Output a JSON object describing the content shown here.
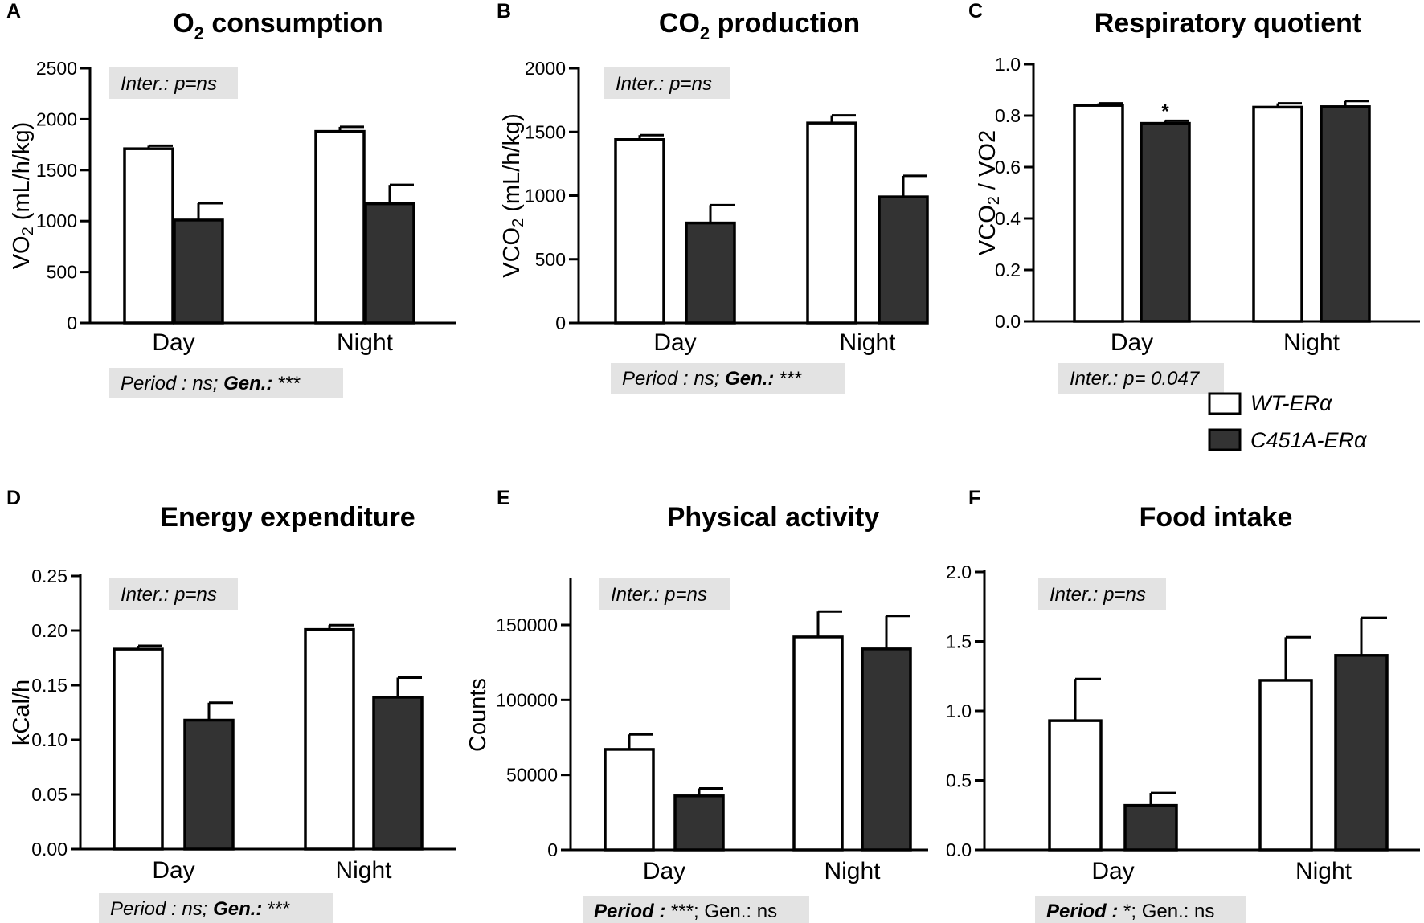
{
  "legend": {
    "wt_label": "WT-ERα",
    "c451a_label": "C451A-ERα",
    "wt_fill": "#ffffff",
    "c451a_fill": "#333333"
  },
  "colors": {
    "annotation_box": "#e3e3e3",
    "stroke": "#000000"
  },
  "chart_data": [
    {
      "id": "A",
      "panel_letter": "A",
      "type": "bar",
      "title": "O2 consumption",
      "title_main": "O",
      "title_sub": "2",
      "title_rest": " consumption",
      "ylabel": "VO2 (mL/h/kg)",
      "ylabel_main": "VO",
      "ylabel_sub": "2",
      "ylabel_rest": " (mL/h/kg)",
      "ylim": [
        0,
        2500
      ],
      "yticks": [
        0,
        500,
        1000,
        1500,
        2000,
        2500
      ],
      "ytick_labels": [
        "0",
        "500",
        "1000",
        "1500",
        "2000",
        "2500"
      ],
      "categories": [
        "Day",
        "Night"
      ],
      "series": [
        {
          "name": "WT-ERα",
          "values": [
            1710,
            1880
          ],
          "errors": [
            30,
            45
          ]
        },
        {
          "name": "C451A-ERα",
          "values": [
            1010,
            1170
          ],
          "errors": [
            165,
            185
          ]
        }
      ],
      "top_annotation": "Inter.: p=ns",
      "bottom_annotation_normal": "Period : ns; ",
      "bottom_annotation_bold": "Gen.:",
      "bottom_annotation_tail": " ***",
      "significance_marks": []
    },
    {
      "id": "B",
      "panel_letter": "B",
      "type": "bar",
      "title": "CO2 production",
      "title_main": "CO",
      "title_sub": "2",
      "title_rest": " production",
      "ylabel": "VCO2 (mL/h/kg)",
      "ylabel_main": "VCO",
      "ylabel_sub": "2",
      "ylabel_rest": " (mL/h/kg)",
      "ylim": [
        0,
        2000
      ],
      "yticks": [
        0,
        500,
        1000,
        1500,
        2000
      ],
      "ytick_labels": [
        "0",
        "500",
        "1000",
        "1500",
        "2000"
      ],
      "categories": [
        "Day",
        "Night"
      ],
      "series": [
        {
          "name": "WT-ERα",
          "values": [
            1440,
            1570
          ],
          "errors": [
            35,
            60
          ]
        },
        {
          "name": "C451A-ERα",
          "values": [
            785,
            990
          ],
          "errors": [
            140,
            165
          ]
        }
      ],
      "top_annotation": "Inter.: p=ns",
      "bottom_annotation_normal": "Period : ns; ",
      "bottom_annotation_bold": "Gen.:",
      "bottom_annotation_tail": " ***",
      "significance_marks": []
    },
    {
      "id": "C",
      "panel_letter": "C",
      "type": "bar",
      "title": "Respiratory quotient",
      "title_main": "Respiratory quotient",
      "title_sub": "",
      "title_rest": "",
      "ylabel": "VCO2 / VO2",
      "ylabel_main": "VCO",
      "ylabel_sub": "2",
      "ylabel_rest": " / VO2",
      "ylim": [
        0,
        1.0
      ],
      "yticks": [
        0,
        0.2,
        0.4,
        0.6,
        0.8,
        1.0
      ],
      "ytick_labels": [
        "0.0",
        "0.2",
        "0.4",
        "0.6",
        "0.8",
        "1.0"
      ],
      "categories": [
        "Day",
        "Night"
      ],
      "series": [
        {
          "name": "WT-ERα",
          "values": [
            0.84,
            0.833
          ],
          "errors": [
            0.008,
            0.015
          ]
        },
        {
          "name": "C451A-ERα",
          "values": [
            0.77,
            0.835
          ],
          "errors": [
            0.01,
            0.022
          ]
        }
      ],
      "top_annotation": "",
      "bottom_annotation_normal": "Inter.: p= 0.047",
      "bottom_annotation_bold": "",
      "bottom_annotation_tail": "",
      "significance_marks": [
        {
          "category": 0,
          "series": 1,
          "label": "*"
        }
      ]
    },
    {
      "id": "D",
      "panel_letter": "D",
      "type": "bar",
      "title": "Energy expenditure",
      "title_main": "Energy expenditure",
      "title_sub": "",
      "title_rest": "",
      "ylabel": "kCal/h",
      "ylabel_main": "kCal/h",
      "ylabel_sub": "",
      "ylabel_rest": "",
      "ylim": [
        0,
        0.25
      ],
      "yticks": [
        0,
        0.05,
        0.1,
        0.15,
        0.2,
        0.25
      ],
      "ytick_labels": [
        "0.00",
        "0.05",
        "0.10",
        "0.15",
        "0.20",
        "0.25"
      ],
      "categories": [
        "Day",
        "Night"
      ],
      "series": [
        {
          "name": "WT-ERα",
          "values": [
            0.183,
            0.201
          ],
          "errors": [
            0.003,
            0.004
          ]
        },
        {
          "name": "C451A-ERα",
          "values": [
            0.118,
            0.139
          ],
          "errors": [
            0.016,
            0.018
          ]
        }
      ],
      "top_annotation": "Inter.: p=ns",
      "bottom_annotation_normal": "Period : ns; ",
      "bottom_annotation_bold": "Gen.:",
      "bottom_annotation_tail": " ***",
      "significance_marks": []
    },
    {
      "id": "E",
      "panel_letter": "E",
      "type": "bar",
      "title": "Physical activity",
      "title_main": "Physical activity",
      "title_sub": "",
      "title_rest": "",
      "ylabel": "Counts",
      "ylabel_main": "Counts",
      "ylabel_sub": "",
      "ylabel_rest": "",
      "ylim": [
        0,
        180000
      ],
      "yticks": [
        0,
        50000,
        100000,
        150000
      ],
      "ytick_labels": [
        "0",
        "50000",
        "100000",
        "150000"
      ],
      "categories": [
        "Day",
        "Night"
      ],
      "series": [
        {
          "name": "WT-ERα",
          "values": [
            67000,
            142000
          ],
          "errors": [
            10000,
            17000
          ]
        },
        {
          "name": "C451A-ERα",
          "values": [
            36000,
            134000
          ],
          "errors": [
            5000,
            22000
          ]
        }
      ],
      "top_annotation": "Inter.: p=ns",
      "bottom_annotation_normal": "",
      "bottom_annotation_bold": "Period :",
      "bottom_annotation_tail": " ***; Gen.: ns",
      "significance_marks": []
    },
    {
      "id": "F",
      "panel_letter": "F",
      "type": "bar",
      "title": "Food intake",
      "title_main": "Food intake",
      "title_sub": "",
      "title_rest": "",
      "ylabel": "",
      "ylabel_main": "",
      "ylabel_sub": "",
      "ylabel_rest": "",
      "ylim": [
        0,
        2.0
      ],
      "yticks": [
        0,
        0.5,
        1.0,
        1.5,
        2.0
      ],
      "ytick_labels": [
        "0.0",
        "0.5",
        "1.0",
        "1.5",
        "2.0"
      ],
      "categories": [
        "Day",
        "Night"
      ],
      "series": [
        {
          "name": "WT-ERα",
          "values": [
            0.93,
            1.22
          ],
          "errors": [
            0.3,
            0.31
          ]
        },
        {
          "name": "C451A-ERα",
          "values": [
            0.32,
            1.4
          ],
          "errors": [
            0.09,
            0.27
          ]
        }
      ],
      "top_annotation": "Inter.: p=ns",
      "bottom_annotation_normal": "",
      "bottom_annotation_bold": "Period :",
      "bottom_annotation_tail": " *; Gen.: ns",
      "significance_marks": []
    }
  ]
}
